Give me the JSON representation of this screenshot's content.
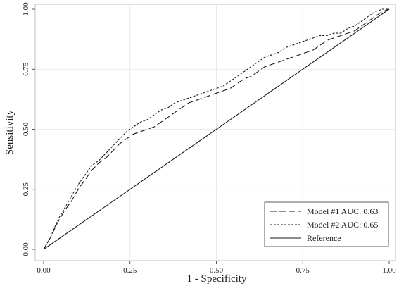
{
  "chart_data": {
    "type": "line",
    "title": "",
    "xlabel": "1 - Specificity",
    "ylabel": "Sensitivity",
    "xlim": [
      0,
      1
    ],
    "ylim": [
      0,
      1
    ],
    "xticks": [
      0,
      0.25,
      0.5,
      0.75,
      1
    ],
    "yticks": [
      0,
      0.25,
      0.5,
      0.75,
      1
    ],
    "xtick_labels": [
      "0.00",
      "0.25",
      "0.50",
      "0.75",
      "1.00"
    ],
    "ytick_labels": [
      "0.00",
      "0.25",
      "0.50",
      "0.75",
      "1.00"
    ],
    "grid": true,
    "legend_position": "bottom-right",
    "series": [
      {
        "name": "Model #1 AUC: 0.63",
        "style": "longdash",
        "color": "#1a1a1a",
        "x": [
          0.0,
          0.02,
          0.04,
          0.06,
          0.08,
          0.1,
          0.12,
          0.14,
          0.16,
          0.18,
          0.2,
          0.22,
          0.24,
          0.26,
          0.28,
          0.3,
          0.32,
          0.34,
          0.36,
          0.38,
          0.4,
          0.42,
          0.44,
          0.46,
          0.48,
          0.5,
          0.52,
          0.54,
          0.56,
          0.58,
          0.6,
          0.62,
          0.64,
          0.66,
          0.68,
          0.7,
          0.72,
          0.74,
          0.76,
          0.78,
          0.8,
          0.82,
          0.84,
          0.86,
          0.88,
          0.9,
          0.92,
          0.94,
          0.96,
          0.98,
          1.0
        ],
        "y": [
          0.0,
          0.05,
          0.11,
          0.16,
          0.2,
          0.25,
          0.29,
          0.33,
          0.36,
          0.38,
          0.41,
          0.44,
          0.46,
          0.48,
          0.49,
          0.5,
          0.51,
          0.53,
          0.55,
          0.57,
          0.59,
          0.61,
          0.62,
          0.63,
          0.64,
          0.65,
          0.66,
          0.67,
          0.69,
          0.71,
          0.72,
          0.74,
          0.76,
          0.77,
          0.78,
          0.79,
          0.8,
          0.81,
          0.82,
          0.83,
          0.85,
          0.87,
          0.88,
          0.89,
          0.9,
          0.91,
          0.93,
          0.95,
          0.97,
          0.99,
          1.0
        ]
      },
      {
        "name": "Model #2 AUC: 0.65",
        "style": "shortdash",
        "color": "#1a1a1a",
        "x": [
          0.0,
          0.02,
          0.04,
          0.06,
          0.08,
          0.1,
          0.12,
          0.14,
          0.16,
          0.18,
          0.2,
          0.22,
          0.24,
          0.26,
          0.28,
          0.3,
          0.32,
          0.34,
          0.36,
          0.38,
          0.4,
          0.42,
          0.44,
          0.46,
          0.48,
          0.5,
          0.52,
          0.54,
          0.56,
          0.58,
          0.6,
          0.62,
          0.64,
          0.66,
          0.68,
          0.7,
          0.72,
          0.74,
          0.76,
          0.78,
          0.8,
          0.82,
          0.84,
          0.86,
          0.88,
          0.9,
          0.92,
          0.94,
          0.96,
          0.98,
          1.0
        ],
        "y": [
          0.0,
          0.05,
          0.12,
          0.17,
          0.22,
          0.27,
          0.31,
          0.35,
          0.37,
          0.4,
          0.43,
          0.46,
          0.49,
          0.51,
          0.53,
          0.54,
          0.56,
          0.58,
          0.59,
          0.61,
          0.62,
          0.63,
          0.64,
          0.65,
          0.66,
          0.67,
          0.68,
          0.7,
          0.72,
          0.74,
          0.76,
          0.78,
          0.8,
          0.81,
          0.82,
          0.84,
          0.85,
          0.86,
          0.87,
          0.88,
          0.89,
          0.89,
          0.9,
          0.9,
          0.92,
          0.93,
          0.95,
          0.97,
          0.99,
          1.0,
          1.0
        ]
      },
      {
        "name": "Reference",
        "style": "solid",
        "color": "#1a1a1a",
        "x": [
          0,
          1
        ],
        "y": [
          0,
          1
        ]
      }
    ]
  }
}
